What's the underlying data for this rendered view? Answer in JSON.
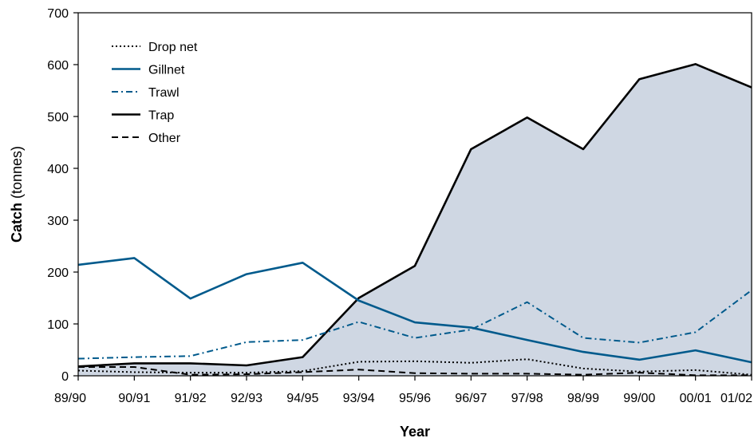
{
  "chart_data": {
    "type": "line",
    "title": "",
    "xlabel": "Year",
    "ylabel": {
      "main": "Catch",
      "unit": " (tonnes)"
    },
    "categories": [
      "89/90",
      "90/91",
      "91/92",
      "92/93",
      "94/95",
      "93/94",
      "95/96",
      "96/97",
      "97/98",
      "98/99",
      "99/00",
      "00/01",
      "01/02"
    ],
    "ylim": [
      0,
      700
    ],
    "yticks": [
      0,
      100,
      200,
      300,
      400,
      500,
      600,
      700
    ],
    "grid": false,
    "legend_position": "top-left",
    "series": [
      {
        "name": "Drop net",
        "style": "dotted",
        "color": "#000000",
        "values": [
          10,
          7,
          6,
          6,
          9,
          27,
          28,
          25,
          32,
          14,
          8,
          11,
          2
        ]
      },
      {
        "name": "Gillnet",
        "style": "solid",
        "color": "#005a8c",
        "values": [
          214,
          227,
          149,
          196,
          218,
          145,
          103,
          93,
          69,
          46,
          31,
          49,
          26
        ]
      },
      {
        "name": "Trawl",
        "style": "dashdot",
        "color": "#005a8c",
        "values": [
          33,
          36,
          38,
          65,
          69,
          104,
          73,
          89,
          142,
          73,
          64,
          84,
          165
        ]
      },
      {
        "name": "Trap",
        "style": "solid",
        "color": "#000000",
        "fill": "#cfd7e3",
        "values": [
          18,
          24,
          24,
          20,
          36,
          150,
          212,
          437,
          498,
          437,
          572,
          601,
          556
        ]
      },
      {
        "name": "Other",
        "style": "dashed",
        "color": "#000000",
        "values": [
          17,
          17,
          2,
          3,
          7,
          12,
          5,
          4,
          4,
          2,
          6,
          1,
          1
        ]
      }
    ]
  }
}
